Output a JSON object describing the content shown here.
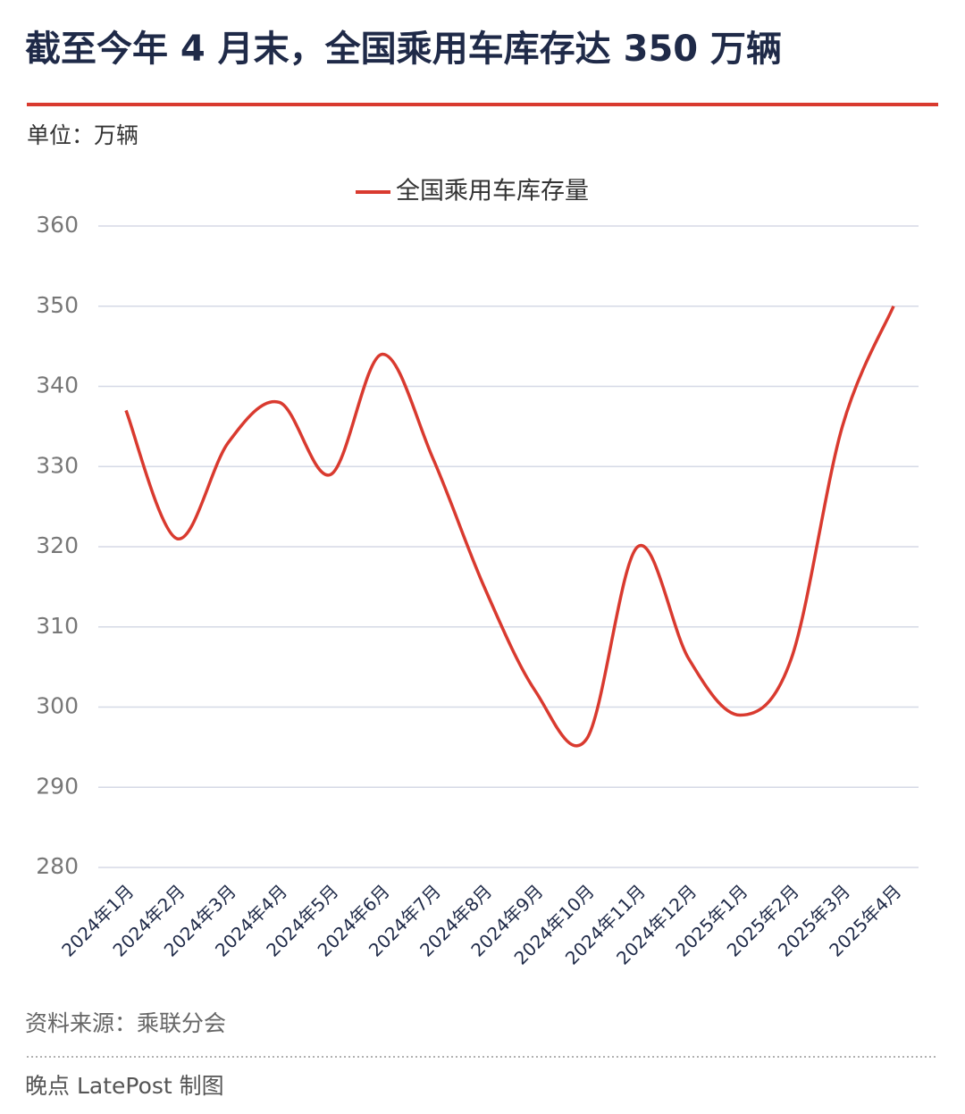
{
  "chart_data": {
    "type": "line",
    "title": "截至今年 4 月末，全国乘用车库存达 350 万辆",
    "unit": "单位：万辆",
    "categories": [
      "2024年1月",
      "2024年2月",
      "2024年3月",
      "2024年4月",
      "2024年5月",
      "2024年6月",
      "2024年7月",
      "2024年8月",
      "2024年9月",
      "2024年10月",
      "2024年11月",
      "2024年12月",
      "2025年1月",
      "2025年2月",
      "2025年3月",
      "2025年4月"
    ],
    "series": [
      {
        "name": "全国乘用车库存量",
        "color": "#d93a2f",
        "values": [
          337,
          321,
          333,
          338,
          329,
          344,
          331,
          315,
          302,
          296,
          320,
          306,
          299,
          306,
          335,
          350
        ]
      }
    ],
    "ylim": [
      280,
      360
    ],
    "yticks": [
      280,
      290,
      300,
      310,
      320,
      330,
      340,
      350,
      360
    ],
    "grid": true,
    "legend": "top",
    "source": "资料来源：乘联分会",
    "credit": "晚点 LatePost 制图"
  }
}
